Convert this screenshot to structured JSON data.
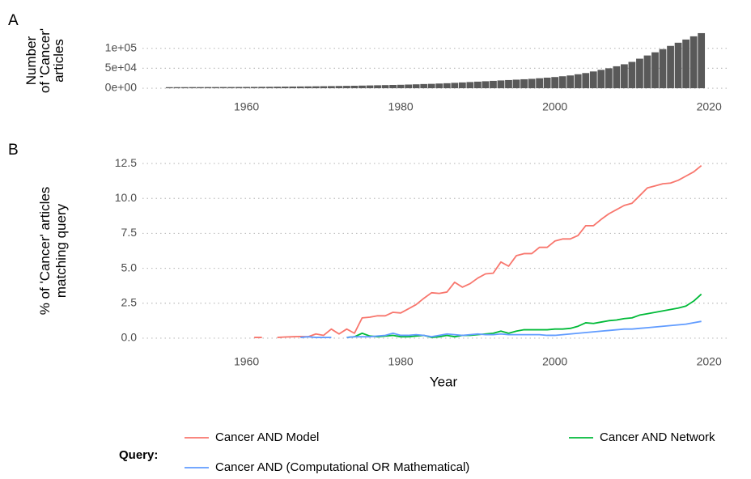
{
  "chart_data": [
    {
      "type": "bar",
      "panel_label": "A",
      "ylabel": [
        "Number",
        "of 'Cancer'",
        "articles"
      ],
      "x": [
        1950,
        1951,
        1952,
        1953,
        1954,
        1955,
        1956,
        1957,
        1958,
        1959,
        1960,
        1961,
        1962,
        1963,
        1964,
        1965,
        1966,
        1967,
        1968,
        1969,
        1970,
        1971,
        1972,
        1973,
        1974,
        1975,
        1976,
        1977,
        1978,
        1979,
        1980,
        1981,
        1982,
        1983,
        1984,
        1985,
        1986,
        1987,
        1988,
        1989,
        1990,
        1991,
        1992,
        1993,
        1994,
        1995,
        1996,
        1997,
        1998,
        1999,
        2000,
        2001,
        2002,
        2003,
        2004,
        2005,
        2006,
        2007,
        2008,
        2009,
        2010,
        2011,
        2012,
        2013,
        2014,
        2015,
        2016,
        2017,
        2018,
        2019
      ],
      "values": [
        2600,
        2700,
        2700,
        2800,
        2800,
        2900,
        2900,
        3000,
        3000,
        3100,
        3200,
        3300,
        3500,
        3600,
        3800,
        4000,
        4200,
        4400,
        4600,
        4800,
        5000,
        5300,
        5600,
        5900,
        6200,
        6600,
        7000,
        7400,
        7800,
        8200,
        8600,
        9200,
        9800,
        10500,
        11000,
        11800,
        12500,
        13500,
        14500,
        15500,
        16500,
        17500,
        18500,
        19500,
        20500,
        21500,
        22500,
        23500,
        25000,
        26500,
        28000,
        30000,
        32000,
        35000,
        38000,
        42000,
        46000,
        50000,
        55000,
        60000,
        66000,
        74000,
        82000,
        90000,
        98000,
        106000,
        114000,
        122000,
        130000,
        138000
      ],
      "color": "#595959",
      "xlim": [
        1946.5,
        2022.5
      ],
      "xticks": [
        1960,
        1980,
        2000,
        2020
      ],
      "ylim": [
        -7000,
        145000
      ],
      "yticks": [
        {
          "value": 0,
          "label": "0e+00"
        },
        {
          "value": 50000,
          "label": "5e+04"
        },
        {
          "value": 100000,
          "label": "1e+05"
        }
      ],
      "grid": true
    },
    {
      "type": "line",
      "panel_label": "B",
      "ylabel": [
        "% of 'Cancer' articles",
        "matching query"
      ],
      "xlabel": "Year",
      "legend_title": "Query:",
      "legend": "bottom",
      "x": [
        1950,
        1951,
        1952,
        1953,
        1954,
        1955,
        1956,
        1957,
        1958,
        1959,
        1960,
        1961,
        1962,
        1963,
        1964,
        1965,
        1966,
        1967,
        1968,
        1969,
        1970,
        1971,
        1972,
        1973,
        1974,
        1975,
        1976,
        1977,
        1978,
        1979,
        1980,
        1981,
        1982,
        1983,
        1984,
        1985,
        1986,
        1987,
        1988,
        1989,
        1990,
        1991,
        1992,
        1993,
        1994,
        1995,
        1996,
        1997,
        1998,
        1999,
        2000,
        2001,
        2002,
        2003,
        2004,
        2005,
        2006,
        2007,
        2008,
        2009,
        2010,
        2011,
        2012,
        2013,
        2014,
        2015,
        2016,
        2017,
        2018,
        2019
      ],
      "series": [
        {
          "name": "Cancer AND Model",
          "color": "#F8766D",
          "values": [
            null,
            null,
            null,
            null,
            null,
            null,
            null,
            null,
            null,
            null,
            null,
            0.05,
            0.05,
            null,
            0.05,
            0.08,
            0.1,
            0.12,
            0.1,
            0.3,
            0.2,
            0.65,
            0.3,
            0.65,
            0.35,
            1.45,
            1.5,
            1.6,
            1.6,
            1.85,
            1.8,
            2.1,
            2.4,
            2.85,
            3.25,
            3.2,
            3.3,
            4.0,
            3.65,
            3.9,
            4.3,
            4.6,
            4.65,
            5.45,
            5.15,
            5.9,
            6.05,
            6.05,
            6.5,
            6.5,
            6.95,
            7.1,
            7.1,
            7.35,
            8.05,
            8.05,
            8.5,
            8.9,
            9.2,
            9.5,
            9.65,
            10.2,
            10.75,
            10.9,
            11.05,
            11.1,
            11.3,
            11.6,
            11.9,
            12.35
          ]
        },
        {
          "name": "Cancer AND Network",
          "color": "#00BA38",
          "values": [
            null,
            null,
            null,
            null,
            null,
            null,
            null,
            null,
            null,
            null,
            null,
            null,
            null,
            null,
            null,
            null,
            null,
            null,
            null,
            null,
            null,
            null,
            null,
            0.05,
            0.1,
            0.35,
            0.15,
            0.1,
            0.15,
            0.2,
            0.1,
            0.1,
            0.15,
            0.2,
            0.05,
            0.1,
            0.2,
            0.1,
            0.2,
            0.2,
            0.25,
            0.3,
            0.35,
            0.5,
            0.35,
            0.5,
            0.6,
            0.6,
            0.6,
            0.6,
            0.65,
            0.65,
            0.7,
            0.85,
            1.1,
            1.05,
            1.15,
            1.25,
            1.3,
            1.4,
            1.45,
            1.65,
            1.75,
            1.85,
            1.95,
            2.05,
            2.15,
            2.3,
            2.65,
            3.15
          ]
        },
        {
          "name": "Cancer AND (Computational OR Mathematical)",
          "color": "#619CFF",
          "values": [
            null,
            null,
            null,
            null,
            null,
            null,
            null,
            null,
            null,
            null,
            null,
            null,
            null,
            null,
            null,
            null,
            null,
            0.05,
            0.1,
            0.05,
            0.05,
            0.05,
            null,
            0.05,
            0.1,
            0.1,
            0.1,
            0.15,
            0.2,
            0.35,
            0.2,
            0.2,
            0.25,
            0.2,
            0.1,
            0.2,
            0.3,
            0.25,
            0.2,
            0.25,
            0.3,
            0.25,
            0.25,
            0.3,
            0.25,
            0.25,
            0.25,
            0.25,
            0.25,
            0.2,
            0.2,
            0.25,
            0.3,
            0.35,
            0.4,
            0.45,
            0.5,
            0.55,
            0.6,
            0.65,
            0.65,
            0.7,
            0.75,
            0.8,
            0.85,
            0.9,
            0.95,
            1.0,
            1.1,
            1.2
          ]
        }
      ],
      "xlim": [
        1946.5,
        2022.5
      ],
      "xticks": [
        1960,
        1980,
        2000,
        2020
      ],
      "ylim": [
        -0.7,
        13.2
      ],
      "yticks": [
        {
          "value": 0,
          "label": "0.0"
        },
        2.5,
        {
          "value": 5,
          "label": "5.0"
        },
        7.5,
        {
          "value": 10,
          "label": "10.0"
        },
        12.5
      ],
      "grid": true
    }
  ]
}
